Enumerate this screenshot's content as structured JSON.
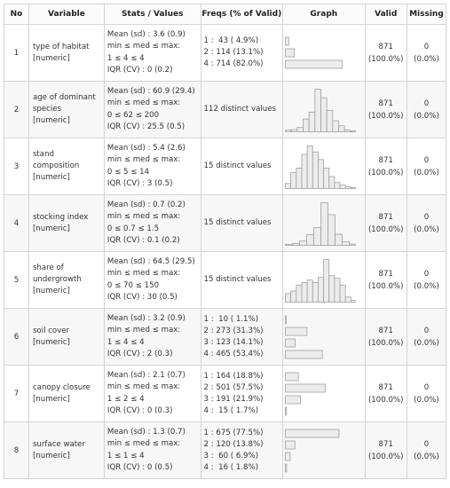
{
  "headers": {
    "no": "No",
    "variable": "Variable",
    "stats": "Stats / Values",
    "freqs": "Freqs (% of Valid)",
    "graph": "Graph",
    "valid": "Valid",
    "missing": "Missing"
  },
  "rows": [
    {
      "no": "1",
      "name": "type of habitat",
      "type": "[numeric]",
      "stats": [
        "Mean (sd) : 3.6 (0.9)",
        "min ≤ med ≤ max:",
        "1 ≤ 4 ≤ 4",
        "IQR (CV) : 0 (0.2)"
      ],
      "freqs": [
        "1 :  43 ( 4.9%)",
        "2 : 114 (13.1%)",
        "4 : 714 (82.0%)"
      ],
      "valid": "871",
      "valid_pct": "(100.0%)",
      "missing": "0",
      "missing_pct": "(0.0%)"
    },
    {
      "no": "2",
      "name": "age of dominant species",
      "type": "[numeric]",
      "stats": [
        "Mean (sd) : 60.9 (29.4)",
        "min ≤ med ≤ max:",
        "0 ≤ 62 ≤ 200",
        "IQR (CV) : 25.5 (0.5)"
      ],
      "freqs": [
        "112 distinct values"
      ],
      "valid": "871",
      "valid_pct": "(100.0%)",
      "missing": "0",
      "missing_pct": "(0.0%)"
    },
    {
      "no": "3",
      "name": "stand composition",
      "type": "[numeric]",
      "stats": [
        "Mean (sd) : 5.4 (2.6)",
        "min ≤ med ≤ max:",
        "0 ≤ 5 ≤ 14",
        "IQR (CV) : 3 (0.5)"
      ],
      "freqs": [
        "15 distinct values"
      ],
      "valid": "871",
      "valid_pct": "(100.0%)",
      "missing": "0",
      "missing_pct": "(0.0%)"
    },
    {
      "no": "4",
      "name": "stocking index",
      "type": "[numeric]",
      "stats": [
        "Mean (sd) : 0.7 (0.2)",
        "min ≤ med ≤ max:",
        "0 ≤ 0.7 ≤ 1.5",
        "IQR (CV) : 0.1 (0.2)"
      ],
      "freqs": [
        "15 distinct values"
      ],
      "valid": "871",
      "valid_pct": "(100.0%)",
      "missing": "0",
      "missing_pct": "(0.0%)"
    },
    {
      "no": "5",
      "name": "share of undergrowth",
      "type": "[numeric]",
      "stats": [
        "Mean (sd) : 64.5 (29.5)",
        "min ≤ med ≤ max:",
        "0 ≤ 70 ≤ 150",
        "IQR (CV) : 30 (0.5)"
      ],
      "freqs": [
        "15 distinct values"
      ],
      "valid": "871",
      "valid_pct": "(100.0%)",
      "missing": "0",
      "missing_pct": "(0.0%)"
    },
    {
      "no": "6",
      "name": "soil cover",
      "type": "[numeric]",
      "stats": [
        "Mean (sd) : 3.2 (0.9)",
        "min ≤ med ≤ max:",
        "1 ≤ 4 ≤ 4",
        "IQR (CV) : 2 (0.3)"
      ],
      "freqs": [
        "1 :  10 ( 1.1%)",
        "2 : 273 (31.3%)",
        "3 : 123 (14.1%)",
        "4 : 465 (53.4%)"
      ],
      "valid": "871",
      "valid_pct": "(100.0%)",
      "missing": "0",
      "missing_pct": "(0.0%)"
    },
    {
      "no": "7",
      "name": "canopy closure",
      "type": "[numeric]",
      "stats": [
        "Mean (sd) : 2.1 (0.7)",
        "min ≤ med ≤ max:",
        "1 ≤ 2 ≤ 4",
        "IQR (CV) : 0 (0.3)"
      ],
      "freqs": [
        "1 : 164 (18.8%)",
        "2 : 501 (57.5%)",
        "3 : 191 (21.9%)",
        "4 :  15 ( 1.7%)"
      ],
      "valid": "871",
      "valid_pct": "(100.0%)",
      "missing": "0",
      "missing_pct": "(0.0%)"
    },
    {
      "no": "8",
      "name": "surface water",
      "type": "[numeric]",
      "stats": [
        "Mean (sd) : 1.3 (0.7)",
        "min ≤ med ≤ max:",
        "1 ≤ 1 ≤ 4",
        "IQR (CV) : 0 (0.5)"
      ],
      "freqs": [
        "1 : 675 (77.5%)",
        "2 : 120 (13.8%)",
        "3 :  60 ( 6.9%)",
        "4 :  16 ( 1.8%)"
      ],
      "valid": "871",
      "valid_pct": "(100.0%)",
      "missing": "0",
      "missing_pct": "(0.0%)"
    }
  ],
  "chart_data": [
    {
      "type": "bar",
      "orientation": "horizontal",
      "row": 1,
      "values": [
        4.9,
        13.1,
        82.0
      ]
    },
    {
      "type": "histogram",
      "row": 2,
      "values": [
        4,
        5,
        10,
        30,
        46,
        100,
        80,
        50,
        26,
        14,
        4,
        2
      ]
    },
    {
      "type": "histogram",
      "row": 3,
      "values": [
        12,
        38,
        48,
        80,
        100,
        86,
        68,
        48,
        28,
        14,
        8,
        4,
        2
      ]
    },
    {
      "type": "histogram",
      "row": 4,
      "values": [
        2,
        4,
        10,
        25,
        42,
        100,
        72,
        26,
        8,
        3
      ]
    },
    {
      "type": "histogram",
      "row": 5,
      "values": [
        20,
        26,
        40,
        46,
        52,
        46,
        58,
        100,
        62,
        56,
        40,
        12,
        4
      ]
    },
    {
      "type": "bar",
      "orientation": "horizontal",
      "row": 6,
      "values": [
        1.1,
        31.3,
        14.1,
        53.4
      ]
    },
    {
      "type": "bar",
      "orientation": "horizontal",
      "row": 7,
      "values": [
        18.8,
        57.5,
        21.9,
        1.7
      ]
    },
    {
      "type": "bar",
      "orientation": "horizontal",
      "row": 8,
      "values": [
        77.5,
        13.8,
        6.9,
        1.8
      ]
    }
  ]
}
